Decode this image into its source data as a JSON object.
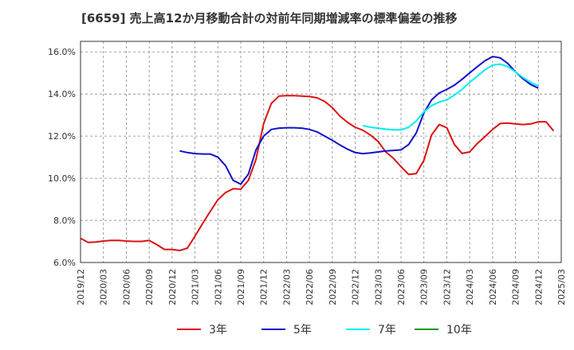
{
  "chart_data": {
    "type": "line",
    "title": "[6659]  売上高12か月移動合計の対前年同期増減率の標準偏差の推移",
    "xlabel": "",
    "ylabel": "",
    "ylim": [
      6.0,
      16.5
    ],
    "yticks": [
      6.0,
      8.0,
      10.0,
      12.0,
      14.0,
      16.0
    ],
    "ytick_labels": [
      "6.0%",
      "8.0%",
      "10.0%",
      "12.0%",
      "14.0%",
      "16.0%"
    ],
    "xticks": [
      "2019/12",
      "2020/03",
      "2020/06",
      "2020/09",
      "2020/12",
      "2021/03",
      "2021/06",
      "2021/09",
      "2021/12",
      "2022/03",
      "2022/06",
      "2022/09",
      "2022/12",
      "2023/03",
      "2023/06",
      "2023/09",
      "2023/12",
      "2024/03",
      "2024/06",
      "2024/09",
      "2024/12",
      "2025/03"
    ],
    "grid": true,
    "legend_position": "bottom",
    "series": [
      {
        "name": "3年",
        "color": "#dd1111",
        "start": "2019/12",
        "values": [
          7.15,
          6.95,
          6.97,
          7.02,
          7.05,
          7.05,
          7.02,
          7.0,
          7.0,
          7.05,
          6.85,
          6.62,
          6.62,
          6.57,
          6.68,
          7.25,
          7.85,
          8.42,
          8.98,
          9.32,
          9.5,
          9.48,
          9.9,
          10.9,
          12.6,
          13.55,
          13.9,
          13.92,
          13.92,
          13.9,
          13.88,
          13.82,
          13.65,
          13.35,
          12.95,
          12.65,
          12.42,
          12.28,
          12.05,
          11.75,
          11.25,
          10.95,
          10.55,
          10.18,
          10.22,
          10.85,
          12.05,
          12.55,
          12.4,
          11.6,
          11.18,
          11.25,
          11.65,
          11.98,
          12.32,
          12.6,
          12.62,
          12.58,
          12.55,
          12.58,
          12.68,
          12.68,
          12.25
        ]
      },
      {
        "name": "5年",
        "color": "#1111cc",
        "start": "2021/01",
        "values": [
          11.3,
          11.22,
          11.17,
          11.15,
          11.15,
          11.0,
          10.6,
          9.9,
          9.72,
          10.2,
          11.35,
          12.0,
          12.32,
          12.38,
          12.4,
          12.4,
          12.38,
          12.32,
          12.2,
          12.0,
          11.8,
          11.58,
          11.38,
          11.22,
          11.17,
          11.2,
          11.25,
          11.3,
          11.32,
          11.35,
          11.6,
          12.15,
          13.1,
          13.72,
          14.05,
          14.22,
          14.42,
          14.7,
          15.0,
          15.3,
          15.58,
          15.78,
          15.72,
          15.45,
          15.05,
          14.72,
          14.45,
          14.28
        ]
      },
      {
        "name": "7年",
        "color": "#00eeee",
        "start": "2023/01",
        "values": [
          12.5,
          12.42,
          12.38,
          12.33,
          12.3,
          12.3,
          12.42,
          12.72,
          13.15,
          13.45,
          13.62,
          13.72,
          13.95,
          14.22,
          14.55,
          14.85,
          15.15,
          15.38,
          15.42,
          15.3,
          15.05,
          14.78,
          14.55,
          14.38
        ]
      },
      {
        "name": "10年",
        "color": "#119911",
        "start": "2019/12",
        "values": []
      }
    ]
  }
}
